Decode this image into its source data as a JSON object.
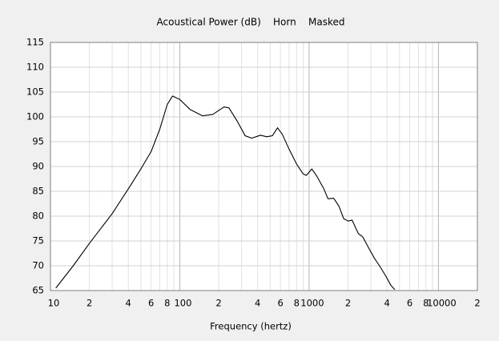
{
  "chart_data": {
    "type": "line",
    "title": "Acoustical Power (dB)    Horn    Masked",
    "x_label": "Frequency (hertz)",
    "x_scale": "log",
    "grid": true,
    "color": "#000000",
    "xlim": [
      10,
      20000
    ],
    "ylim": [
      65,
      115
    ],
    "xticks": [
      10,
      {
        "value": 20,
        "label": "2"
      },
      {
        "value": 40,
        "label": "4"
      },
      {
        "value": 60,
        "label": "6"
      },
      {
        "value": 80,
        "label": "8"
      },
      100,
      {
        "value": 200,
        "label": "2"
      },
      {
        "value": 400,
        "label": "4"
      },
      {
        "value": 600,
        "label": "6"
      },
      {
        "value": 800,
        "label": "8"
      },
      1000,
      {
        "value": 2000,
        "label": "2"
      },
      {
        "value": 4000,
        "label": "4"
      },
      {
        "value": 6000,
        "label": "6"
      },
      {
        "value": 8000,
        "label": "8"
      },
      10000,
      {
        "value": 20000,
        "label": "2"
      }
    ],
    "minor_xticks": [
      30,
      50,
      70,
      90,
      300,
      500,
      700,
      900,
      3000,
      5000,
      7000,
      9000
    ],
    "yticks": [
      65,
      70,
      75,
      80,
      85,
      90,
      95,
      100,
      105,
      110,
      115
    ],
    "x": [
      11,
      15,
      20,
      30,
      40,
      50,
      60,
      70,
      80,
      88,
      100,
      120,
      150,
      180,
      220,
      240,
      280,
      320,
      360,
      420,
      470,
      520,
      570,
      620,
      700,
      800,
      900,
      950,
      1050,
      1150,
      1300,
      1400,
      1550,
      1700,
      1850,
      2000,
      2150,
      2400,
      2600,
      2900,
      3200,
      3500,
      3900,
      4300,
      4600
    ],
    "values": [
      65.5,
      70,
      74.5,
      80.5,
      85.5,
      89.5,
      93,
      97.5,
      102.5,
      104.2,
      103.5,
      101.5,
      100.2,
      100.5,
      102,
      101.8,
      99,
      96.2,
      95.7,
      96.3,
      96,
      96.2,
      97.8,
      96.5,
      93.5,
      90.5,
      88.5,
      88.2,
      89.5,
      88,
      85.5,
      83.5,
      83.6,
      82,
      79.5,
      79,
      79.2,
      76.5,
      75.8,
      73.5,
      71.5,
      70,
      68,
      66,
      65.2
    ]
  }
}
